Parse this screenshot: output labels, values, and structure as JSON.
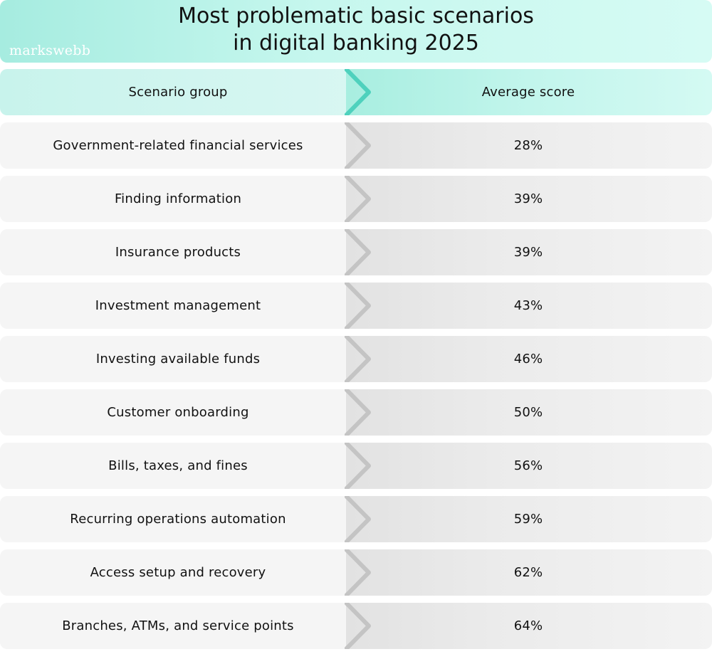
{
  "brand": "markswebb",
  "title_line1": "Most problematic basic scenarios",
  "title_line2": "in digital banking 2025",
  "colors": {
    "header_bg": "#c6f7ee",
    "header_chevron": "#4fd1bd",
    "row_bg": "#f5f5f5",
    "row_chevron": "#c4c4c4",
    "brand_text": "#ffffff"
  },
  "chart_data": {
    "type": "table",
    "title": "Most problematic basic scenarios in digital banking 2025",
    "columns": [
      "Scenario group",
      "Average score"
    ],
    "rows": [
      {
        "scenario": "Government-related financial services",
        "score": "28%"
      },
      {
        "scenario": "Finding information",
        "score": "39%"
      },
      {
        "scenario": "Insurance products",
        "score": "39%"
      },
      {
        "scenario": "Investment management",
        "score": "43%"
      },
      {
        "scenario": "Investing available funds",
        "score": "46%"
      },
      {
        "scenario": "Customer onboarding",
        "score": "50%"
      },
      {
        "scenario": "Bills, taxes, and fines",
        "score": "56%"
      },
      {
        "scenario": "Recurring operations automation",
        "score": "59%"
      },
      {
        "scenario": "Access setup and recovery",
        "score": "62%"
      },
      {
        "scenario": "Branches, ATMs, and service points",
        "score": "64%"
      }
    ]
  }
}
